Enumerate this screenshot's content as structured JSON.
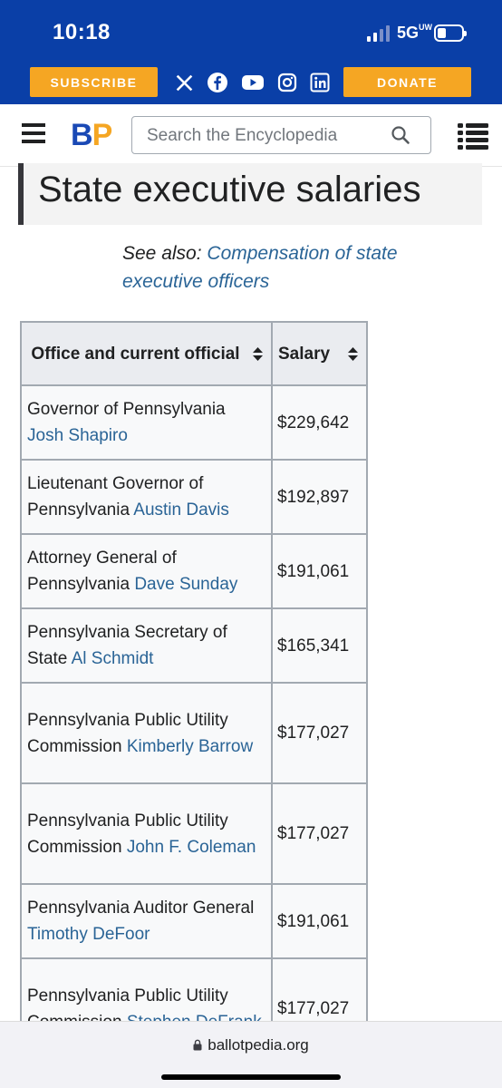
{
  "status": {
    "time": "10:18",
    "network": "5G",
    "network_sup": "UW"
  },
  "banner": {
    "subscribe_label": "SUBSCRIBE",
    "donate_label": "DONATE",
    "socials": [
      "x-icon",
      "facebook-icon",
      "youtube-icon",
      "instagram-icon",
      "linkedin-icon"
    ]
  },
  "header": {
    "logo_b": "B",
    "logo_p": "P",
    "search_placeholder": "Search the Encyclopedia"
  },
  "page": {
    "title": "State executive salaries",
    "see_also_prefix": "See also:",
    "see_also_link": "Compensation of state executive officers"
  },
  "table": {
    "headers": [
      "Office and current official",
      "Salary"
    ],
    "rows": [
      {
        "office": "Governor of Pennsylvania",
        "official": "Josh Shapiro",
        "salary": "$229,642"
      },
      {
        "office": "Lieutenant Governor of Pennsylvania",
        "official": "Austin Davis",
        "salary": "$192,897"
      },
      {
        "office": "Attorney General of Pennsylvania",
        "official": "Dave Sunday",
        "salary": "$191,061"
      },
      {
        "office": "Pennsylvania Secretary of State",
        "official": "Al Schmidt",
        "salary": "$165,341"
      },
      {
        "office": "Pennsylvania Public Utility Commission",
        "official": "Kimberly Barrow",
        "salary": "$177,027"
      },
      {
        "office": "Pennsylvania Public Utility Commission",
        "official": "John F. Coleman",
        "salary": "$177,027"
      },
      {
        "office": "Pennsylvania Auditor General",
        "official": "Timothy DeFoor",
        "salary": "$191,061"
      },
      {
        "office": "Pennsylvania Public Utility Commission",
        "official": "Stephen DeFrank",
        "salary": "$177,027"
      }
    ]
  },
  "browser": {
    "url": "ballotpedia.org"
  },
  "colors": {
    "brand_blue": "#0a3fa7",
    "brand_orange": "#f5a623",
    "link": "#2a6496"
  }
}
